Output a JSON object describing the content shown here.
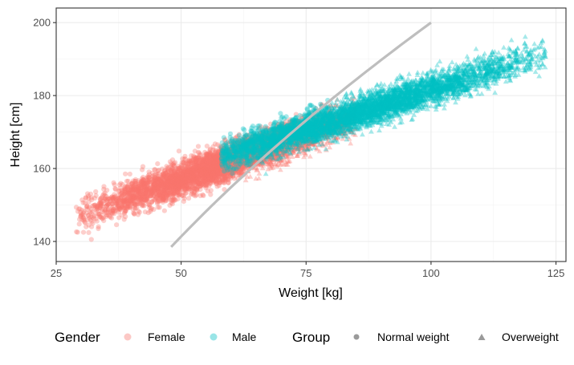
{
  "chart_data": {
    "type": "scatter",
    "title": "",
    "xlabel": "Weight [kg]",
    "ylabel": "Height [cm]",
    "xlim": [
      25,
      127
    ],
    "ylim": [
      134.5,
      204
    ],
    "x_ticks": [
      25,
      50,
      75,
      100,
      125
    ],
    "y_ticks": [
      140,
      160,
      180,
      200
    ],
    "grid": true,
    "legend_position": "bottom",
    "legend": {
      "color_title": "Gender",
      "shape_title": "Group",
      "color_entries": [
        {
          "label": "Female",
          "color": "#F8766D"
        },
        {
          "label": "Male",
          "color": "#00BFC4"
        }
      ],
      "shape_entries": [
        {
          "label": "Normal weight",
          "shape": "circle"
        },
        {
          "label": "Overweight",
          "shape": "triangle"
        }
      ]
    },
    "series": [
      {
        "name": "Female",
        "color": "#F8766D",
        "point_count": 5000,
        "center": {
          "weight": 60,
          "height": 162
        },
        "weight_range": [
          29,
          85
        ],
        "height_range": [
          138,
          184
        ]
      },
      {
        "name": "Male",
        "color": "#00BFC4",
        "point_count": 5000,
        "center": {
          "weight": 85,
          "height": 175
        },
        "weight_range": [
          58,
          123
        ],
        "height_range": [
          152,
          201
        ]
      }
    ],
    "threshold_curve": {
      "color": "#BEBEBE",
      "x_range": [
        48,
        100
      ],
      "y_range": [
        138.5,
        200
      ]
    }
  }
}
